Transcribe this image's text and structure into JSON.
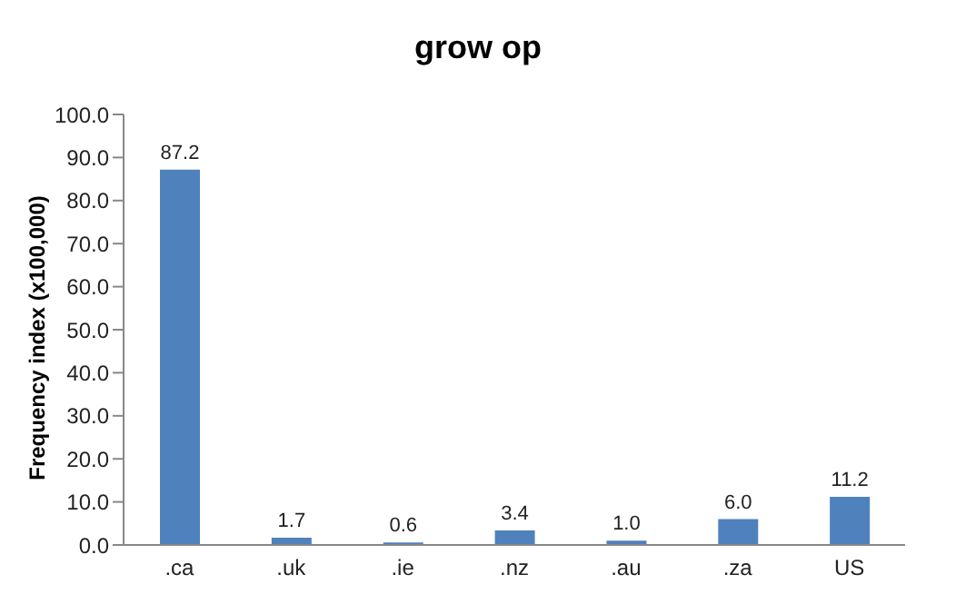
{
  "chart_data": {
    "type": "bar",
    "title": "grow op",
    "ylabel": "Frequency index (x100,000)",
    "categories": [
      ".ca",
      ".uk",
      ".ie",
      ".nz",
      ".au",
      ".za",
      "US"
    ],
    "values": [
      87.2,
      1.7,
      0.6,
      3.4,
      1.0,
      6.0,
      11.2
    ],
    "value_labels": [
      "87.2",
      "1.7",
      "0.6",
      "3.4",
      "1.0",
      "6.0",
      "11.2"
    ],
    "color": "#4f81bd",
    "ylim": [
      0,
      100
    ],
    "yticks": [
      {
        "value": 0,
        "label": "0.0"
      },
      {
        "value": 10,
        "label": "10.0"
      },
      {
        "value": 20,
        "label": "20.0"
      },
      {
        "value": 30,
        "label": "30.0"
      },
      {
        "value": 40,
        "label": "40.0"
      },
      {
        "value": 50,
        "label": "50.0"
      },
      {
        "value": 60,
        "label": "60.0"
      },
      {
        "value": 70,
        "label": "70.0"
      },
      {
        "value": 80,
        "label": "80.0"
      },
      {
        "value": 90,
        "label": "90.0"
      },
      {
        "value": 100,
        "label": "100.0"
      }
    ],
    "grid": false,
    "legend": false
  }
}
